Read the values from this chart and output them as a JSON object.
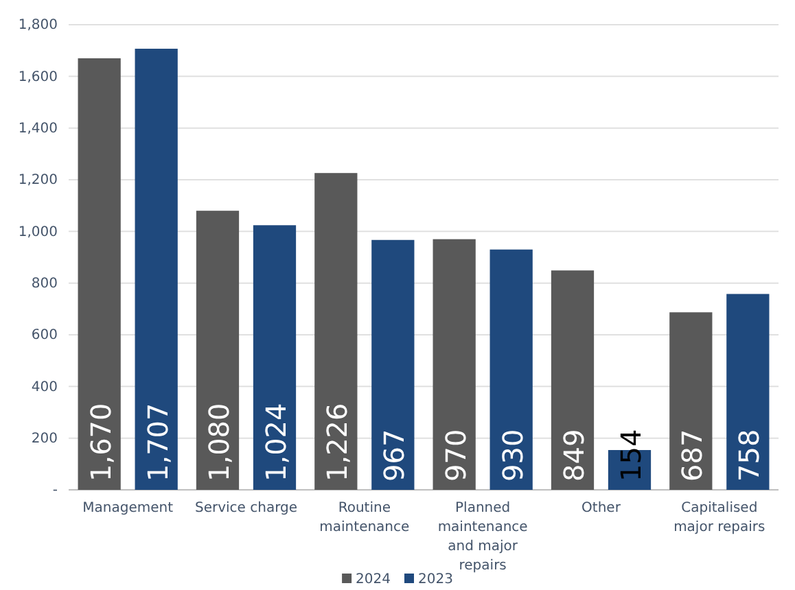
{
  "chart_data": {
    "type": "bar",
    "categories": [
      "Management",
      "Service charge",
      "Routine maintenance",
      "Planned maintenance and major repairs",
      "Other",
      "Capitalised major repairs"
    ],
    "series": [
      {
        "name": "2024",
        "color": "#595959",
        "values": [
          1670,
          1080,
          1226,
          970,
          849,
          687
        ],
        "value_labels": [
          "1,670",
          "1,080",
          "1,226",
          "970",
          "849",
          "687"
        ]
      },
      {
        "name": "2023",
        "color": "#1f497d",
        "values": [
          1707,
          1024,
          967,
          930,
          154,
          758
        ],
        "value_labels": [
          "1,707",
          "1,024",
          "967",
          "930",
          "154",
          "758"
        ]
      }
    ],
    "ylim": [
      0,
      1800
    ],
    "yticks": [
      {
        "value": 0,
        "label": "-"
      },
      {
        "value": 200,
        "label": "200"
      },
      {
        "value": 400,
        "label": "400"
      },
      {
        "value": 600,
        "label": "600"
      },
      {
        "value": 800,
        "label": "800"
      },
      {
        "value": 1000,
        "label": "1,000"
      },
      {
        "value": 1200,
        "label": "1,200"
      },
      {
        "value": 1400,
        "label": "1,400"
      },
      {
        "value": 1600,
        "label": "1,600"
      },
      {
        "value": 1800,
        "label": "1,800"
      }
    ],
    "grid": "y",
    "legend": "bottom"
  }
}
